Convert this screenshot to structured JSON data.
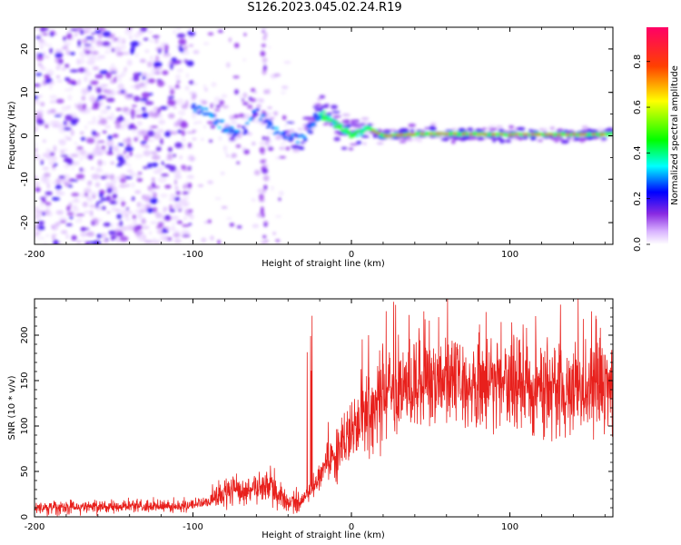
{
  "title": "S126.2023.045.02.24.R19",
  "chart_data": [
    {
      "type": "heatmap",
      "title": "S126.2023.045.02.24.R19",
      "xlabel": "Height of straight line (km)",
      "ylabel": "Frequency (Hz)",
      "xlim": [
        -200,
        165
      ],
      "ylim": [
        -25,
        25
      ],
      "x_ticks": [
        -200,
        -100,
        0,
        100
      ],
      "x_tick_labels": [
        "-200",
        "-100",
        "0",
        "100"
      ],
      "y_ticks": [
        20,
        10,
        0,
        -10,
        -20
      ],
      "y_tick_labels": [
        "20",
        "10",
        "0",
        "-10",
        "-20"
      ],
      "colorbar": {
        "label": "Normalized spectral amplitude",
        "range": [
          0,
          0.95
        ],
        "ticks": [
          0.0,
          0.2,
          0.4,
          0.6,
          0.8
        ],
        "tick_labels": [
          "0.0",
          "0.2",
          "0.4",
          "0.6",
          "0.8"
        ],
        "colors": [
          "#ffffff",
          "#8a2be2",
          "#0000ff",
          "#00ffff",
          "#00ff00",
          "#ffff00",
          "#ff0000",
          "#ff0066"
        ]
      },
      "ridge": {
        "description_points_x": [
          -100,
          -90,
          -80,
          -70,
          -60,
          -50,
          -40,
          -30,
          -20,
          -10,
          0,
          10,
          20,
          50,
          100,
          165
        ],
        "description_points_f": [
          7,
          5,
          2,
          0,
          6,
          2,
          -1,
          0,
          5,
          3,
          0,
          2,
          0,
          0.5,
          0.3,
          0.3
        ],
        "peak_amplitude": 0.95
      }
    },
    {
      "type": "line",
      "xlabel": "Height of straight line (km)",
      "ylabel": "SNR (10 * v/v)",
      "xlim": [
        -200,
        165
      ],
      "ylim": [
        0,
        240
      ],
      "x_ticks": [
        -200,
        -100,
        0,
        100
      ],
      "x_tick_labels": [
        "-200",
        "-100",
        "0",
        "100"
      ],
      "y_ticks": [
        0,
        50,
        100,
        150,
        200
      ],
      "y_tick_labels": [
        "0",
        "50",
        "100",
        "150",
        "200"
      ],
      "series": [
        {
          "name": "SNR",
          "color": "#e8201c",
          "trend_x": [
            -200,
            -100,
            -90,
            -75,
            -50,
            -45,
            -35,
            -25,
            -15,
            0,
            10,
            20,
            40,
            60,
            100,
            140,
            165
          ],
          "trend_y": [
            10,
            12,
            18,
            28,
            35,
            20,
            15,
            30,
            60,
            90,
            115,
            130,
            150,
            148,
            145,
            140,
            145
          ],
          "peak_max": 240
        }
      ]
    }
  ]
}
